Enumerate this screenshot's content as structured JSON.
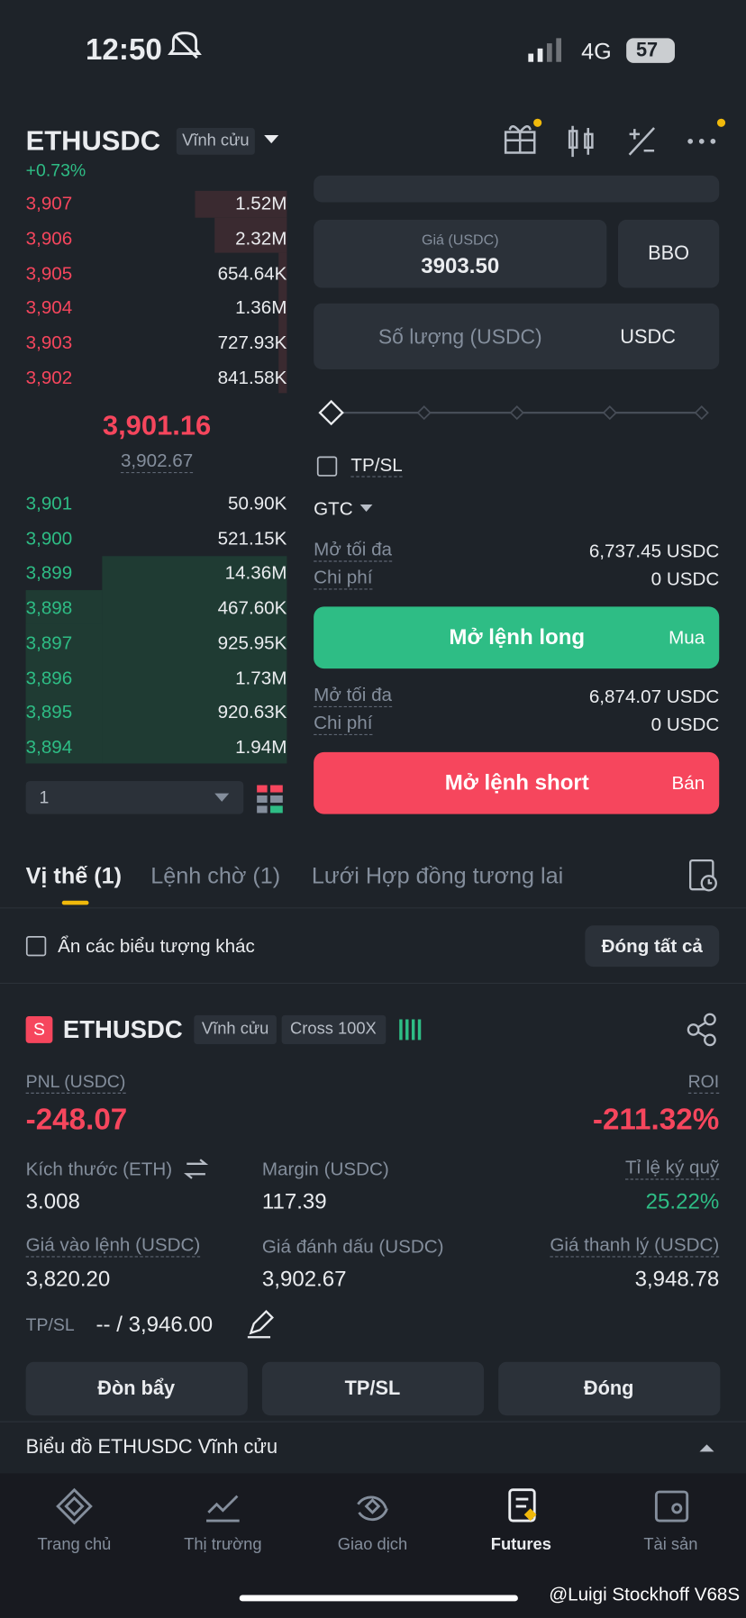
{
  "status": {
    "time": "12:50",
    "network": "4G",
    "battery": "57"
  },
  "header": {
    "symbol": "ETHUSDC",
    "tag": "Vĩnh cửu",
    "change": "+0.73%"
  },
  "orderbook": {
    "asks": [
      {
        "price": "3,907",
        "qty": "1.52M"
      },
      {
        "price": "3,906",
        "qty": "2.32M"
      },
      {
        "price": "3,905",
        "qty": "654.64K"
      },
      {
        "price": "3,904",
        "qty": "1.36M"
      },
      {
        "price": "3,903",
        "qty": "727.93K"
      },
      {
        "price": "3,902",
        "qty": "841.58K"
      }
    ],
    "last_price": "3,901.16",
    "mark_price": "3,902.67",
    "bids": [
      {
        "price": "3,901",
        "qty": "50.90K"
      },
      {
        "price": "3,900",
        "qty": "521.15K"
      },
      {
        "price": "3,899",
        "qty": "14.36M"
      },
      {
        "price": "3,898",
        "qty": "467.60K"
      },
      {
        "price": "3,897",
        "qty": "925.95K"
      },
      {
        "price": "3,896",
        "qty": "1.73M"
      },
      {
        "price": "3,895",
        "qty": "920.63K"
      },
      {
        "price": "3,894",
        "qty": "1.94M"
      }
    ],
    "depth": "1"
  },
  "order_form": {
    "price_label": "Giá (USDC)",
    "price": "3903.50",
    "bbo": "BBO",
    "qty_placeholder": "Số lượng (USDC)",
    "unit": "USDC",
    "tpsl": "TP/SL",
    "tif": "GTC",
    "long": {
      "max_label": "Mở tối đa",
      "max": "6,737.45 USDC",
      "cost_label": "Chi phí",
      "cost": "0 USDC",
      "button": "Mở lệnh long",
      "side": "Mua"
    },
    "short": {
      "max_label": "Mở tối đa",
      "max": "6,874.07 USDC",
      "cost_label": "Chi phí",
      "cost": "0 USDC",
      "button": "Mở lệnh short",
      "side": "Bán"
    }
  },
  "tabs": [
    "Vị thế (1)",
    "Lệnh chờ (1)",
    "Lưới Hợp đồng tương lai"
  ],
  "positions_bar": {
    "hide_others": "Ẩn các biểu tượng khác",
    "close_all": "Đóng tất cả"
  },
  "position": {
    "side": "S",
    "symbol": "ETHUSDC",
    "tag": "Vĩnh cửu",
    "margin_mode": "Cross 100X",
    "pnl_label": "PNL (USDC)",
    "pnl": "-248.07",
    "roi_label": "ROI",
    "roi": "-211.32%",
    "fields": [
      {
        "label": "Kích thước (ETH)",
        "value": "3.008"
      },
      {
        "label": "Margin (USDC)",
        "value": "117.39"
      },
      {
        "label": "Tỉ lệ ký quỹ",
        "value": "25.22%"
      },
      {
        "label": "Giá vào lệnh (USDC)",
        "value": "3,820.20"
      },
      {
        "label": "Giá đánh dấu (USDC)",
        "value": "3,902.67"
      },
      {
        "label": "Giá thanh lý (USDC)",
        "value": "3,948.78"
      }
    ],
    "tpsl_label": "TP/SL",
    "tpsl_value": "-- / 3,946.00",
    "buttons": [
      "Đòn bẩy",
      "TP/SL",
      "Đóng"
    ]
  },
  "chart_bar": "Biểu đồ ETHUSDC Vĩnh cửu",
  "nav": [
    "Trang chủ",
    "Thị trường",
    "Giao dịch",
    "Futures",
    "Tài sản"
  ],
  "watermark": "@Luigi Stockhoff V68S"
}
